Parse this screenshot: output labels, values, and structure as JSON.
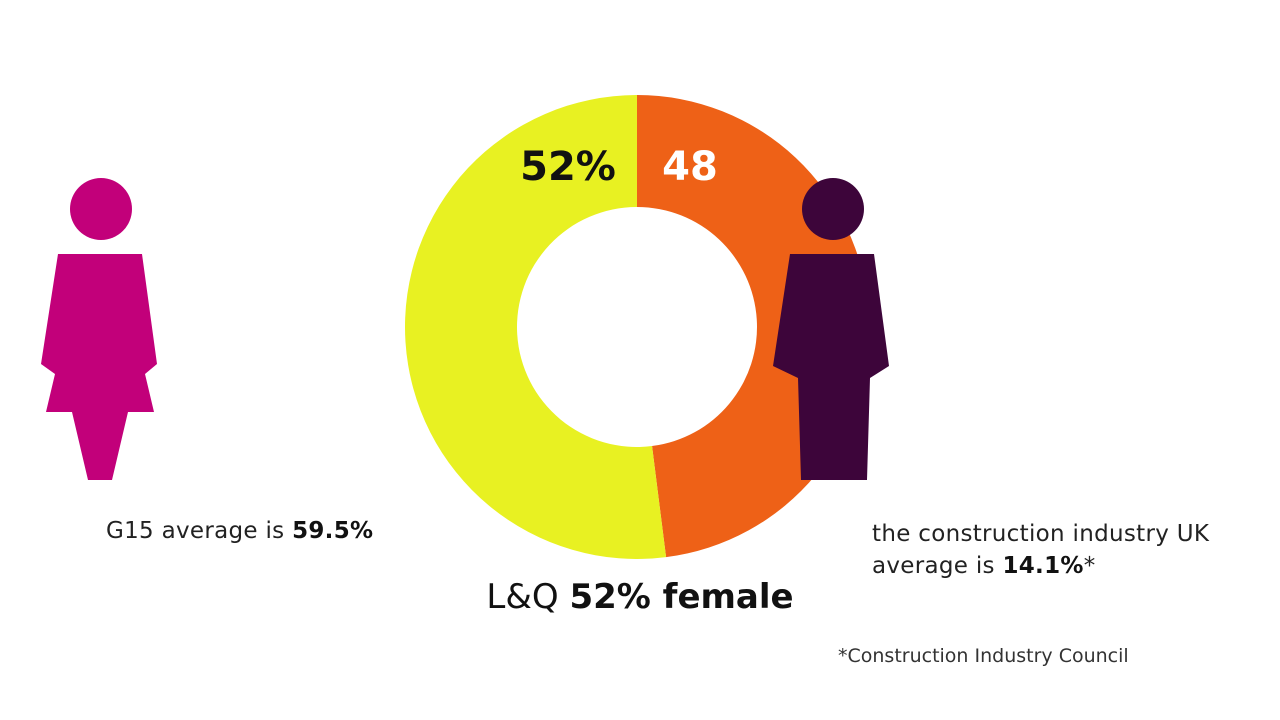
{
  "chart_data": {
    "type": "pie",
    "subtype": "donut",
    "slices": [
      {
        "label": "52%",
        "value": 52,
        "color": "#e8f122"
      },
      {
        "label": "48",
        "value": 48,
        "color": "#ee6117"
      }
    ],
    "title_prefix": "L&Q",
    "title_bold": "52% female"
  },
  "left_stat": {
    "text": "G15 average is ",
    "value": "59.5%",
    "icon": "female-figure-icon",
    "color": "#c2007a"
  },
  "right_stat": {
    "line1": "the construction industry UK",
    "line2": "average is ",
    "value": "14.1%",
    "suffix": "*",
    "icon": "female-figure-icon",
    "color": "#3d053a"
  },
  "footnote": "*Construction Industry Council"
}
